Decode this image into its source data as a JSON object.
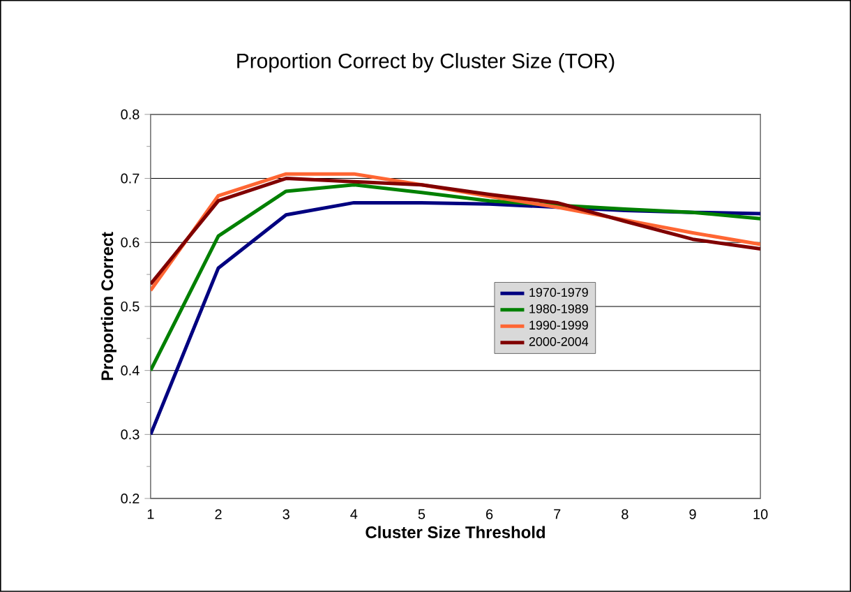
{
  "chart_data": {
    "type": "line",
    "title": "Proportion Correct by Cluster Size (TOR)",
    "xlabel": "Cluster Size Threshold",
    "ylabel": "Proportion Correct",
    "x": [
      1,
      2,
      3,
      4,
      5,
      6,
      7,
      8,
      9,
      10
    ],
    "series": [
      {
        "name": "1970-1979",
        "color": "#000080",
        "values": [
          0.3,
          0.56,
          0.643,
          0.662,
          0.662,
          0.66,
          0.655,
          0.65,
          0.647,
          0.645
        ]
      },
      {
        "name": "1980-1989",
        "color": "#008000",
        "values": [
          0.4,
          0.61,
          0.68,
          0.69,
          0.678,
          0.665,
          0.658,
          0.652,
          0.647,
          0.637
        ]
      },
      {
        "name": "1990-1999",
        "color": "#ff6633",
        "values": [
          0.525,
          0.673,
          0.707,
          0.707,
          0.69,
          0.672,
          0.655,
          0.635,
          0.615,
          0.597
        ]
      },
      {
        "name": "2000-2004",
        "color": "#800000",
        "values": [
          0.535,
          0.665,
          0.7,
          0.695,
          0.69,
          0.675,
          0.662,
          0.633,
          0.605,
          0.59
        ]
      }
    ],
    "xlim": [
      1,
      10
    ],
    "xticks": [
      1,
      2,
      3,
      4,
      5,
      6,
      7,
      8,
      9,
      10
    ],
    "ylim": [
      0.2,
      0.8
    ],
    "yticks": [
      0.2,
      0.3,
      0.4,
      0.5,
      0.6,
      0.7,
      0.8
    ],
    "grid": "y",
    "legend": "right",
    "marker": "none",
    "line_style": "solid"
  }
}
